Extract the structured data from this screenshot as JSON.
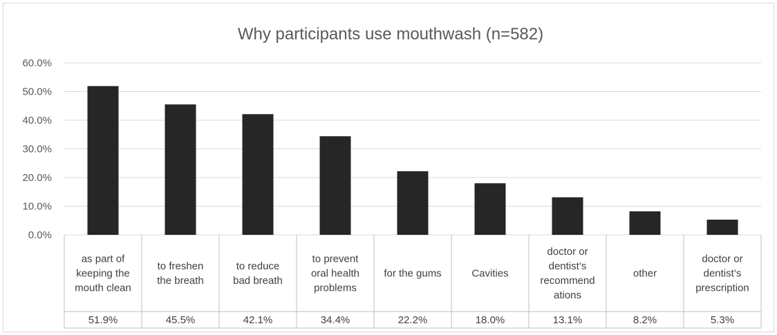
{
  "chart_data": {
    "type": "bar",
    "title": "Why participants use mouthwash (n=582)",
    "categories": [
      [
        "as part of",
        "keeping the",
        "mouth clean"
      ],
      [
        "to freshen",
        "the breath"
      ],
      [
        "to reduce",
        "bad breath"
      ],
      [
        "to prevent",
        "oral health",
        "problems"
      ],
      [
        "for the gums"
      ],
      [
        "Cavities"
      ],
      [
        "doctor or",
        "dentist’s",
        "recommend",
        "ations"
      ],
      [
        "other"
      ],
      [
        "doctor or",
        "dentist’s",
        "prescription"
      ]
    ],
    "values": [
      51.9,
      45.5,
      42.1,
      34.4,
      22.2,
      18.0,
      13.1,
      8.2,
      5.3
    ],
    "value_labels": [
      "51.9%",
      "45.5%",
      "42.1%",
      "34.4%",
      "22.2%",
      "18.0%",
      "13.1%",
      "8.2%",
      "5.3%"
    ],
    "ylim": [
      0,
      60
    ],
    "yticks": [
      "0.0%",
      "10.0%",
      "20.0%",
      "30.0%",
      "40.0%",
      "50.0%",
      "60.0%"
    ],
    "grid": true,
    "colors": {
      "bar": "#262626",
      "grid": "#d9d9d9",
      "text": "#595959"
    }
  }
}
